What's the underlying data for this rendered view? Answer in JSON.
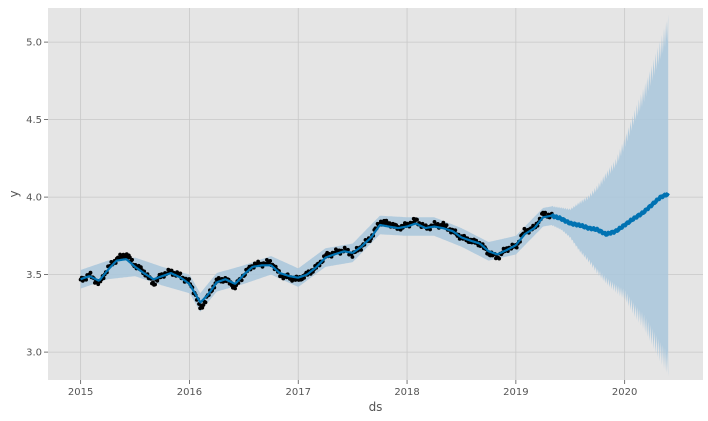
{
  "chart_data": {
    "type": "line",
    "title": "",
    "xlabel": "ds",
    "ylabel": "y",
    "xlim": [
      2014.7,
      2020.72
    ],
    "ylim": [
      2.82,
      5.22
    ],
    "grid": true,
    "legend": "none",
    "x_ticks": [
      2015,
      2016,
      2017,
      2018,
      2019,
      2020
    ],
    "x_tick_labels": [
      "2015",
      "2016",
      "2017",
      "2018",
      "2019",
      "2020"
    ],
    "y_ticks": [
      3.0,
      3.5,
      4.0,
      4.5,
      5.0
    ],
    "y_tick_labels": [
      "3.0",
      "3.5",
      "4.0",
      "4.5",
      "5.0"
    ],
    "history_end": 2019.33,
    "series": [
      {
        "role": "observed points (black dots)",
        "x": [
          2015.0,
          2015.08,
          2015.17,
          2015.25,
          2015.33,
          2015.42,
          2015.5,
          2015.58,
          2015.67,
          2015.75,
          2015.83,
          2015.92,
          2016.0,
          2016.05,
          2016.1,
          2016.17,
          2016.25,
          2016.33,
          2016.42,
          2016.5,
          2016.58,
          2016.67,
          2016.75,
          2016.83,
          2016.92,
          2017.0,
          2017.08,
          2017.17,
          2017.25,
          2017.33,
          2017.42,
          2017.5,
          2017.58,
          2017.67,
          2017.75,
          2017.83,
          2017.92,
          2018.0,
          2018.08,
          2018.17,
          2018.25,
          2018.33,
          2018.42,
          2018.5,
          2018.58,
          2018.67,
          2018.75,
          2018.83,
          2018.92,
          2019.0,
          2019.08,
          2019.17,
          2019.25,
          2019.33
        ],
        "y": [
          3.46,
          3.5,
          3.44,
          3.54,
          3.6,
          3.63,
          3.56,
          3.52,
          3.44,
          3.5,
          3.52,
          3.49,
          3.45,
          3.38,
          3.28,
          3.36,
          3.46,
          3.47,
          3.42,
          3.5,
          3.56,
          3.57,
          3.58,
          3.5,
          3.48,
          3.47,
          3.5,
          3.55,
          3.62,
          3.64,
          3.66,
          3.63,
          3.68,
          3.74,
          3.84,
          3.83,
          3.8,
          3.82,
          3.85,
          3.8,
          3.82,
          3.82,
          3.78,
          3.74,
          3.72,
          3.7,
          3.64,
          3.61,
          3.67,
          3.68,
          3.78,
          3.8,
          3.89,
          3.88
        ]
      },
      {
        "role": "fitted and forecast trend (yhat)",
        "x": [
          2015.0,
          2015.08,
          2015.17,
          2015.25,
          2015.33,
          2015.42,
          2015.5,
          2015.58,
          2015.67,
          2015.75,
          2015.83,
          2015.92,
          2016.0,
          2016.05,
          2016.1,
          2016.17,
          2016.25,
          2016.33,
          2016.42,
          2016.5,
          2016.58,
          2016.67,
          2016.75,
          2016.83,
          2016.92,
          2017.0,
          2017.08,
          2017.17,
          2017.25,
          2017.33,
          2017.42,
          2017.5,
          2017.58,
          2017.67,
          2017.75,
          2017.83,
          2017.92,
          2018.0,
          2018.08,
          2018.17,
          2018.25,
          2018.33,
          2018.42,
          2018.5,
          2018.58,
          2018.67,
          2018.75,
          2018.83,
          2018.92,
          2019.0,
          2019.08,
          2019.17,
          2019.25,
          2019.33,
          2019.42,
          2019.5,
          2019.58,
          2019.67,
          2019.75,
          2019.83,
          2019.92,
          2020.0,
          2020.08,
          2020.17,
          2020.25,
          2020.33,
          2020.4
        ],
        "y": [
          3.47,
          3.49,
          3.46,
          3.53,
          3.59,
          3.6,
          3.55,
          3.51,
          3.47,
          3.49,
          3.51,
          3.48,
          3.44,
          3.38,
          3.32,
          3.37,
          3.45,
          3.47,
          3.44,
          3.5,
          3.55,
          3.56,
          3.56,
          3.51,
          3.49,
          3.48,
          3.5,
          3.55,
          3.61,
          3.63,
          3.65,
          3.64,
          3.68,
          3.74,
          3.82,
          3.81,
          3.8,
          3.81,
          3.83,
          3.8,
          3.81,
          3.8,
          3.78,
          3.74,
          3.72,
          3.7,
          3.65,
          3.63,
          3.66,
          3.69,
          3.76,
          3.8,
          3.87,
          3.88,
          3.86,
          3.83,
          3.82,
          3.8,
          3.79,
          3.76,
          3.78,
          3.82,
          3.86,
          3.9,
          3.95,
          4.0,
          4.02
        ]
      },
      {
        "role": "uncertainty interval (yhat_lower / yhat_upper)",
        "x": [
          2015.0,
          2015.25,
          2015.5,
          2015.75,
          2016.0,
          2016.1,
          2016.25,
          2016.5,
          2016.75,
          2017.0,
          2017.25,
          2017.5,
          2017.75,
          2018.0,
          2018.25,
          2018.5,
          2018.75,
          2019.0,
          2019.25,
          2019.33,
          2019.42,
          2019.5,
          2019.58,
          2019.67,
          2019.75,
          2019.83,
          2019.92,
          2020.0,
          2020.08,
          2020.17,
          2020.25,
          2020.33,
          2020.4
        ],
        "lower": [
          3.41,
          3.47,
          3.49,
          3.43,
          3.38,
          3.26,
          3.39,
          3.44,
          3.5,
          3.42,
          3.55,
          3.58,
          3.76,
          3.75,
          3.75,
          3.68,
          3.59,
          3.63,
          3.81,
          3.82,
          3.79,
          3.74,
          3.66,
          3.59,
          3.52,
          3.46,
          3.41,
          3.37,
          3.28,
          3.2,
          3.1,
          3.0,
          2.92
        ],
        "upper": [
          3.53,
          3.59,
          3.61,
          3.55,
          3.5,
          3.38,
          3.51,
          3.56,
          3.62,
          3.54,
          3.67,
          3.7,
          3.88,
          3.87,
          3.87,
          3.8,
          3.71,
          3.75,
          3.93,
          3.94,
          3.93,
          3.92,
          3.96,
          4.0,
          4.06,
          4.14,
          4.22,
          4.35,
          4.5,
          4.65,
          4.8,
          4.95,
          5.1
        ]
      }
    ],
    "colors": {
      "panel_background": "#e5e5e5",
      "grid": "#c8c8c8",
      "observed_points": "#000000",
      "trend_line": "#0072b2",
      "interval_fill": "#a9c7dc"
    }
  }
}
